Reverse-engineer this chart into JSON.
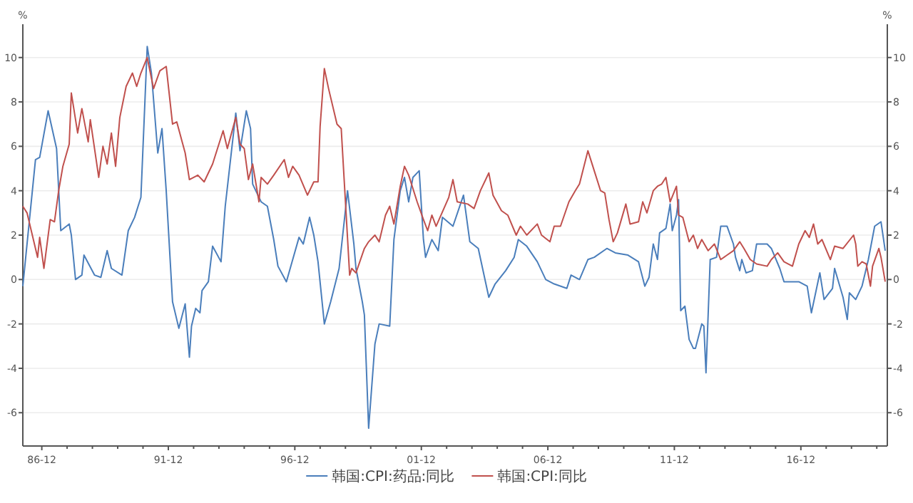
{
  "chart_data": {
    "type": "line",
    "ylabel": "%",
    "y2label": "%",
    "xlim": [
      "1986-03",
      "2020-05"
    ],
    "xticks": [
      {
        "value": "1986-12",
        "label": "86-12"
      },
      {
        "value": "1987-12",
        "label": null
      },
      {
        "value": "1988-12",
        "label": null
      },
      {
        "value": "1989-12",
        "label": null
      },
      {
        "value": "1990-12",
        "label": null
      },
      {
        "value": "1991-12",
        "label": "91-12"
      },
      {
        "value": "1992-12",
        "label": null
      },
      {
        "value": "1993-12",
        "label": null
      },
      {
        "value": "1994-12",
        "label": null
      },
      {
        "value": "1995-12",
        "label": null
      },
      {
        "value": "1996-12",
        "label": "96-12"
      },
      {
        "value": "1997-12",
        "label": null
      },
      {
        "value": "1998-12",
        "label": null
      },
      {
        "value": "1999-12",
        "label": null
      },
      {
        "value": "2000-12",
        "label": null
      },
      {
        "value": "2001-12",
        "label": "01-12"
      },
      {
        "value": "2002-12",
        "label": null
      },
      {
        "value": "2003-12",
        "label": null
      },
      {
        "value": "2004-12",
        "label": null
      },
      {
        "value": "2005-12",
        "label": null
      },
      {
        "value": "2006-12",
        "label": "06-12"
      },
      {
        "value": "2007-12",
        "label": null
      },
      {
        "value": "2008-12",
        "label": null
      },
      {
        "value": "2009-12",
        "label": null
      },
      {
        "value": "2010-12",
        "label": null
      },
      {
        "value": "2011-12",
        "label": "11-12"
      },
      {
        "value": "2012-12",
        "label": null
      },
      {
        "value": "2013-12",
        "label": null
      },
      {
        "value": "2014-12",
        "label": null
      },
      {
        "value": "2015-12",
        "label": null
      },
      {
        "value": "2016-12",
        "label": "16-12"
      },
      {
        "value": "2017-12",
        "label": null
      },
      {
        "value": "2018-12",
        "label": null
      },
      {
        "value": "2019-12",
        "label": null
      }
    ],
    "ylim": [
      -7.5,
      11.5
    ],
    "yticks": [
      -6,
      -4,
      -2,
      0,
      2,
      4,
      6,
      8,
      10
    ],
    "y2lim": [
      -7.5,
      11.5
    ],
    "y2ticks": [
      -6,
      -4,
      -2,
      0,
      2,
      4,
      6,
      8,
      10
    ],
    "grid": "y",
    "legend": "bottom",
    "line_style": "solid",
    "series": [
      {
        "name": "韩国:CPI:药品:同比",
        "color": "#4a7ebb",
        "x": [
          "1986-03",
          "1986-09",
          "1986-11",
          "1987-03",
          "1987-07",
          "1987-09",
          "1988-01",
          "1988-02",
          "1988-04",
          "1988-07",
          "1988-08",
          "1989-01",
          "1989-04",
          "1989-07",
          "1989-09",
          "1990-02",
          "1990-05",
          "1990-08",
          "1990-11",
          "1991-02",
          "1991-04",
          "1991-07",
          "1991-09",
          "1991-11",
          "1992-02",
          "1992-05",
          "1992-08",
          "1992-10",
          "1992-11",
          "1993-01",
          "1993-03",
          "1993-04",
          "1993-07",
          "1993-09",
          "1994-01",
          "1994-03",
          "1994-08",
          "1994-10",
          "1995-01",
          "1995-03",
          "1995-04",
          "1995-08",
          "1995-11",
          "1996-02",
          "1996-04",
          "1996-08",
          "1996-11",
          "1997-02",
          "1997-04",
          "1997-07",
          "1997-09",
          "1997-11",
          "1998-02",
          "1998-05",
          "1998-09",
          "1999-01",
          "1999-04",
          "1999-05",
          "1999-08",
          "1999-09",
          "1999-11",
          "2000-02",
          "2000-04",
          "2000-09",
          "2000-11",
          "2001-02",
          "2001-04",
          "2001-06",
          "2001-08",
          "2001-11",
          "2002-01",
          "2002-02",
          "2002-05",
          "2002-08",
          "2002-10",
          "2003-03",
          "2003-08",
          "2003-11",
          "2004-03",
          "2004-08",
          "2004-11",
          "2005-04",
          "2005-08",
          "2005-10",
          "2006-02",
          "2006-07",
          "2006-11",
          "2007-03",
          "2007-09",
          "2007-11",
          "2008-03",
          "2008-07",
          "2008-10",
          "2009-04",
          "2009-08",
          "2010-02",
          "2010-07",
          "2010-10",
          "2010-12",
          "2011-02",
          "2011-04",
          "2011-05",
          "2011-08",
          "2011-10",
          "2011-11",
          "2012-01",
          "2012-02",
          "2012-03",
          "2012-05",
          "2012-07",
          "2012-09",
          "2012-10",
          "2013-01",
          "2013-02",
          "2013-03",
          "2013-05",
          "2013-08",
          "2013-10",
          "2014-01",
          "2014-04",
          "2014-05",
          "2014-07",
          "2014-08",
          "2014-10",
          "2015-01",
          "2015-03",
          "2015-08",
          "2015-10",
          "2016-02",
          "2016-04",
          "2016-11",
          "2017-03",
          "2017-05",
          "2017-09",
          "2017-11",
          "2018-03",
          "2018-04",
          "2018-08",
          "2018-10",
          "2018-11",
          "2019-02",
          "2019-05",
          "2019-08",
          "2019-11",
          "2020-02",
          "2020-04"
        ],
        "values": [
          -0.3,
          5.4,
          5.5,
          7.6,
          5.9,
          2.2,
          2.5,
          2.0,
          0,
          0.2,
          1.1,
          0.2,
          0.1,
          1.3,
          0.5,
          0.2,
          2.2,
          2.8,
          3.7,
          10.5,
          9.3,
          5.7,
          6.8,
          4.0,
          -1.0,
          -2.2,
          -1.1,
          -3.5,
          -2.1,
          -1.3,
          -1.5,
          -0.5,
          -0.1,
          1.5,
          0.8,
          3.3,
          7.5,
          5.8,
          7.6,
          6.8,
          4.3,
          3.5,
          3.3,
          1.8,
          0.6,
          -0.1,
          0.9,
          1.9,
          1.6,
          2.8,
          2.0,
          0.8,
          -2.0,
          -1.0,
          0.5,
          4.0,
          1.6,
          0.5,
          -1.0,
          -1.6,
          -6.7,
          -2.9,
          -2.0,
          -2.1,
          1.8,
          4.0,
          4.6,
          3.5,
          4.6,
          4.9,
          1.8,
          1.0,
          1.8,
          1.3,
          2.8,
          2.4,
          3.8,
          1.7,
          1.4,
          -0.8,
          -0.2,
          0.4,
          1.0,
          1.8,
          1.5,
          0.8,
          0,
          -0.2,
          -0.4,
          0.2,
          0,
          0.9,
          1.0,
          1.4,
          1.2,
          1.1,
          0.8,
          -0.3,
          0.1,
          1.6,
          0.9,
          2.1,
          2.3,
          3.4,
          2.2,
          2.9,
          3.6,
          -1.4,
          -1.2,
          -2.7,
          -3.1,
          -3.1,
          -2.0,
          -2.1,
          -4.2,
          0.9,
          1.0,
          2.4,
          2.4,
          1.6,
          1.0,
          0.4,
          0.9,
          0.3,
          0.4,
          1.6,
          1.6,
          1.4,
          0.5,
          -0.1,
          -0.1,
          -0.3,
          -1.5,
          0.3,
          -0.9,
          -0.4,
          0.5,
          -0.8,
          -1.8,
          -0.6,
          -0.9,
          -0.3,
          0.9,
          2.4,
          2.6,
          1.3
        ]
      },
      {
        "name": "韩国:CPI:同比",
        "color": "#c0504d",
        "x": [
          "1986-03",
          "1986-05",
          "1986-07",
          "1986-10",
          "1986-11",
          "1987-01",
          "1987-04",
          "1987-06",
          "1987-08",
          "1987-10",
          "1988-01",
          "1988-02",
          "1988-05",
          "1988-07",
          "1988-10",
          "1988-11",
          "1989-03",
          "1989-05",
          "1989-07",
          "1989-09",
          "1989-11",
          "1990-01",
          "1990-04",
          "1990-07",
          "1990-09",
          "1990-11",
          "1991-02",
          "1991-05",
          "1991-08",
          "1991-11",
          "1992-02",
          "1992-04",
          "1992-08",
          "1992-10",
          "1993-02",
          "1993-05",
          "1993-09",
          "1994-02",
          "1994-04",
          "1994-08",
          "1994-10",
          "1994-12",
          "1995-02",
          "1995-04",
          "1995-07",
          "1995-08",
          "1995-11",
          "1996-02",
          "1996-07",
          "1996-09",
          "1996-11",
          "1997-02",
          "1997-06",
          "1997-09",
          "1997-11",
          "1997-12",
          "1998-02",
          "1998-04",
          "1998-07",
          "1998-08",
          "1998-10",
          "1999-02",
          "1999-03",
          "1999-05",
          "1999-09",
          "1999-11",
          "2000-02",
          "2000-04",
          "2000-07",
          "2000-09",
          "2000-11",
          "2001-02",
          "2001-04",
          "2001-06",
          "2001-10",
          "2002-01",
          "2002-03",
          "2002-05",
          "2002-07",
          "2003-01",
          "2003-03",
          "2003-05",
          "2003-10",
          "2004-01",
          "2004-04",
          "2004-08",
          "2004-10",
          "2005-02",
          "2005-05",
          "2005-09",
          "2005-11",
          "2006-02",
          "2006-07",
          "2006-09",
          "2007-01",
          "2007-03",
          "2007-06",
          "2007-10",
          "2008-01",
          "2008-03",
          "2008-07",
          "2008-10",
          "2009-01",
          "2009-03",
          "2009-05",
          "2009-07",
          "2009-09",
          "2010-01",
          "2010-03",
          "2010-07",
          "2010-09",
          "2010-11",
          "2011-02",
          "2011-04",
          "2011-06",
          "2011-08",
          "2011-10",
          "2012-01",
          "2012-02",
          "2012-04",
          "2012-07",
          "2012-09",
          "2012-11",
          "2013-01",
          "2013-04",
          "2013-07",
          "2013-10",
          "2014-01",
          "2014-04",
          "2014-07",
          "2014-09",
          "2014-12",
          "2015-03",
          "2015-08",
          "2015-10",
          "2016-01",
          "2016-04",
          "2016-08",
          "2016-11",
          "2017-02",
          "2017-04",
          "2017-06",
          "2017-08",
          "2017-10",
          "2018-02",
          "2018-04",
          "2018-08",
          "2019-01",
          "2019-02",
          "2019-03",
          "2019-05",
          "2019-07",
          "2019-09",
          "2019-10",
          "2020-01",
          "2020-02",
          "2020-04"
        ],
        "values": [
          3.3,
          3.0,
          2.2,
          1.0,
          1.9,
          0.5,
          2.7,
          2.6,
          4.0,
          5.1,
          6.1,
          8.4,
          6.6,
          7.7,
          6.2,
          7.2,
          4.6,
          6.0,
          5.2,
          6.6,
          5.1,
          7.3,
          8.7,
          9.3,
          8.7,
          9.3,
          10.0,
          8.6,
          9.4,
          9.6,
          7.0,
          7.1,
          5.7,
          4.5,
          4.7,
          4.4,
          5.2,
          6.7,
          5.9,
          7.3,
          6.1,
          5.9,
          4.5,
          5.2,
          3.5,
          4.6,
          4.3,
          4.7,
          5.4,
          4.6,
          5.1,
          4.7,
          3.8,
          4.4,
          4.4,
          6.9,
          9.5,
          8.6,
          7.4,
          7.0,
          6.8,
          0.2,
          0.5,
          0.3,
          1.4,
          1.7,
          2.0,
          1.7,
          2.9,
          3.3,
          2.5,
          4.2,
          5.1,
          4.7,
          3.5,
          2.7,
          2.2,
          2.9,
          2.4,
          3.7,
          4.5,
          3.5,
          3.4,
          3.2,
          4.0,
          4.8,
          3.8,
          3.1,
          2.9,
          2.0,
          2.4,
          2.0,
          2.5,
          2.0,
          1.7,
          2.4,
          2.4,
          3.5,
          4.0,
          4.3,
          5.8,
          4.9,
          4.0,
          3.9,
          2.7,
          1.7,
          2.1,
          3.4,
          2.5,
          2.6,
          3.5,
          3.0,
          4.0,
          4.2,
          4.3,
          4.6,
          3.5,
          4.2,
          2.9,
          2.8,
          1.7,
          2.0,
          1.4,
          1.8,
          1.3,
          1.6,
          0.9,
          1.1,
          1.3,
          1.7,
          1.4,
          0.9,
          0.7,
          0.6,
          0.9,
          1.2,
          0.8,
          0.6,
          1.6,
          2.2,
          1.9,
          2.5,
          1.6,
          1.8,
          0.9,
          1.5,
          1.4,
          2.0,
          1.6,
          0.6,
          0.8,
          0.7,
          -0.3,
          0.6,
          1.4,
          1.0,
          -0.1
        ]
      }
    ]
  }
}
